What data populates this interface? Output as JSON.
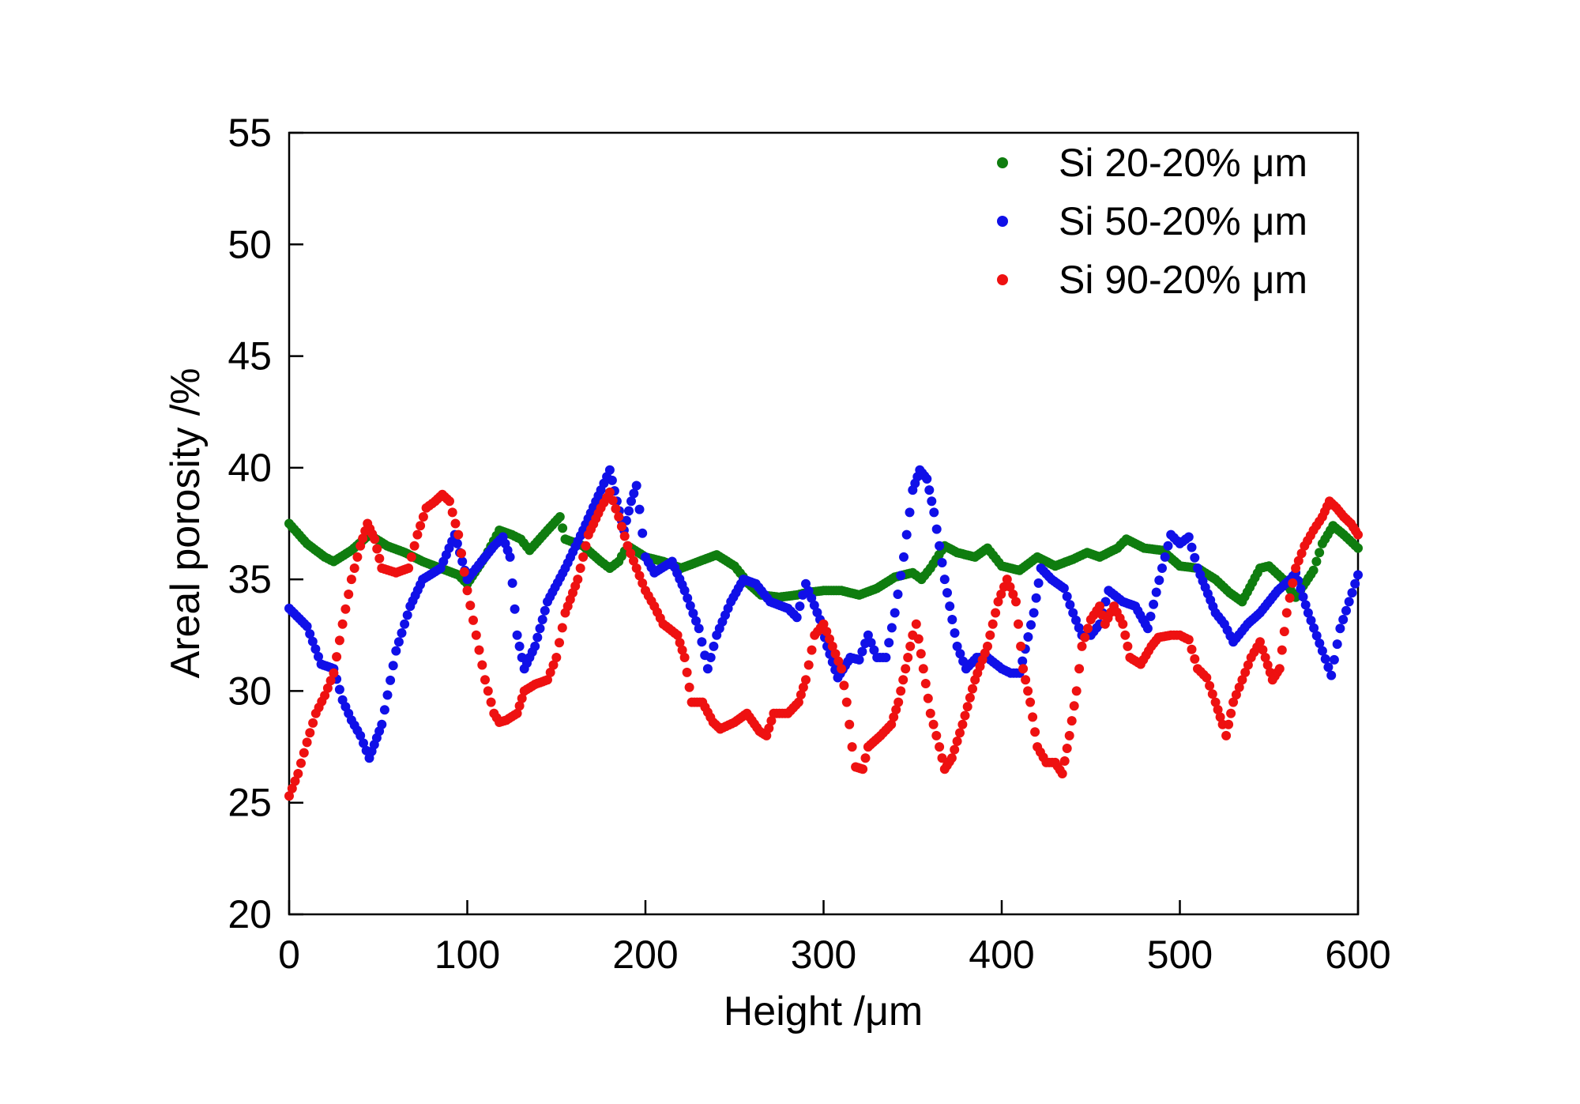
{
  "chart_data": {
    "type": "scatter",
    "xlabel": "Height /μm",
    "ylabel": "Areal porosity /%",
    "xlim": [
      0,
      600
    ],
    "ylim": [
      20,
      55
    ],
    "xticks": [
      0,
      100,
      200,
      300,
      400,
      500,
      600
    ],
    "yticks": [
      20,
      25,
      30,
      35,
      40,
      45,
      50,
      55
    ],
    "grid": false,
    "legend_position": "top-right",
    "series": [
      {
        "name": "Si 20-20% μm",
        "color": "#0f7d0f",
        "points": [
          [
            0,
            37.5
          ],
          [
            10,
            36.6
          ],
          [
            20,
            36.0
          ],
          [
            25,
            35.8
          ],
          [
            35,
            36.3
          ],
          [
            45,
            37.0
          ],
          [
            55,
            36.5
          ],
          [
            65,
            36.2
          ],
          [
            75,
            35.8
          ],
          [
            85,
            35.5
          ],
          [
            95,
            35.2
          ],
          [
            100,
            34.8
          ],
          [
            110,
            36.0
          ],
          [
            118,
            37.2
          ],
          [
            125,
            37.0
          ],
          [
            130,
            36.8
          ],
          [
            135,
            36.3
          ],
          [
            145,
            37.2
          ],
          [
            152,
            37.8
          ],
          [
            155,
            36.8
          ],
          [
            165,
            36.5
          ],
          [
            175,
            35.8
          ],
          [
            180,
            35.5
          ],
          [
            185,
            35.8
          ],
          [
            190,
            36.5
          ],
          [
            200,
            36.0
          ],
          [
            210,
            35.8
          ],
          [
            220,
            35.5
          ],
          [
            230,
            35.8
          ],
          [
            240,
            36.1
          ],
          [
            250,
            35.6
          ],
          [
            258,
            34.8
          ],
          [
            265,
            34.3
          ],
          [
            275,
            34.2
          ],
          [
            285,
            34.3
          ],
          [
            290,
            34.4
          ],
          [
            300,
            34.5
          ],
          [
            310,
            34.5
          ],
          [
            320,
            34.3
          ],
          [
            330,
            34.6
          ],
          [
            340,
            35.1
          ],
          [
            350,
            35.3
          ],
          [
            355,
            35.0
          ],
          [
            360,
            35.5
          ],
          [
            368,
            36.5
          ],
          [
            375,
            36.2
          ],
          [
            385,
            36.0
          ],
          [
            392,
            36.4
          ],
          [
            400,
            35.6
          ],
          [
            410,
            35.4
          ],
          [
            420,
            36.0
          ],
          [
            430,
            35.6
          ],
          [
            440,
            35.9
          ],
          [
            448,
            36.2
          ],
          [
            455,
            36.0
          ],
          [
            465,
            36.4
          ],
          [
            470,
            36.8
          ],
          [
            480,
            36.4
          ],
          [
            490,
            36.3
          ],
          [
            500,
            35.6
          ],
          [
            510,
            35.5
          ],
          [
            520,
            35.0
          ],
          [
            528,
            34.4
          ],
          [
            535,
            34.0
          ],
          [
            545,
            35.5
          ],
          [
            550,
            35.6
          ],
          [
            558,
            35.0
          ],
          [
            565,
            34.2
          ],
          [
            575,
            35.4
          ],
          [
            580,
            36.6
          ],
          [
            586,
            37.4
          ],
          [
            592,
            37.0
          ],
          [
            600,
            36.4
          ]
        ]
      },
      {
        "name": "Si 50-20% μm",
        "color": "#1010e8",
        "points": [
          [
            0,
            33.7
          ],
          [
            10,
            32.9
          ],
          [
            18,
            31.2
          ],
          [
            25,
            31.0
          ],
          [
            30,
            29.6
          ],
          [
            35,
            28.7
          ],
          [
            40,
            28.0
          ],
          [
            45,
            27.0
          ],
          [
            52,
            28.5
          ],
          [
            60,
            31.8
          ],
          [
            68,
            33.8
          ],
          [
            75,
            35.0
          ],
          [
            85,
            35.5
          ],
          [
            93,
            37.0
          ],
          [
            100,
            35.0
          ],
          [
            108,
            35.8
          ],
          [
            115,
            36.5
          ],
          [
            120,
            36.9
          ],
          [
            124,
            36.0
          ],
          [
            128,
            32.5
          ],
          [
            132,
            31.0
          ],
          [
            138,
            32.0
          ],
          [
            145,
            34.0
          ],
          [
            155,
            35.5
          ],
          [
            165,
            37.2
          ],
          [
            175,
            39.0
          ],
          [
            180,
            39.9
          ],
          [
            184,
            38.5
          ],
          [
            188,
            37.2
          ],
          [
            192,
            38.5
          ],
          [
            195,
            39.2
          ],
          [
            200,
            36.0
          ],
          [
            205,
            35.3
          ],
          [
            215,
            35.8
          ],
          [
            222,
            34.5
          ],
          [
            230,
            32.8
          ],
          [
            235,
            31.0
          ],
          [
            240,
            32.5
          ],
          [
            248,
            34.0
          ],
          [
            255,
            35.0
          ],
          [
            262,
            34.8
          ],
          [
            270,
            34.0
          ],
          [
            280,
            33.7
          ],
          [
            285,
            33.3
          ],
          [
            290,
            34.8
          ],
          [
            298,
            33.2
          ],
          [
            302,
            32.0
          ],
          [
            308,
            30.6
          ],
          [
            315,
            31.5
          ],
          [
            320,
            31.4
          ],
          [
            325,
            32.5
          ],
          [
            330,
            31.5
          ],
          [
            335,
            31.5
          ],
          [
            340,
            33.5
          ],
          [
            345,
            36.0
          ],
          [
            350,
            39.0
          ],
          [
            354,
            39.9
          ],
          [
            358,
            39.5
          ],
          [
            362,
            38.0
          ],
          [
            368,
            35.0
          ],
          [
            375,
            32.0
          ],
          [
            380,
            31.0
          ],
          [
            386,
            31.5
          ],
          [
            392,
            31.5
          ],
          [
            400,
            31.0
          ],
          [
            405,
            30.8
          ],
          [
            410,
            30.8
          ],
          [
            418,
            33.5
          ],
          [
            422,
            35.5
          ],
          [
            428,
            35.0
          ],
          [
            435,
            34.6
          ],
          [
            440,
            33.5
          ],
          [
            445,
            32.5
          ],
          [
            450,
            32.5
          ],
          [
            455,
            33.0
          ],
          [
            460,
            34.5
          ],
          [
            468,
            34.0
          ],
          [
            475,
            33.8
          ],
          [
            482,
            32.8
          ],
          [
            490,
            35.5
          ],
          [
            495,
            37.0
          ],
          [
            500,
            36.6
          ],
          [
            505,
            36.9
          ],
          [
            510,
            35.5
          ],
          [
            520,
            33.5
          ],
          [
            525,
            33.0
          ],
          [
            530,
            32.2
          ],
          [
            538,
            33.0
          ],
          [
            545,
            33.5
          ],
          [
            555,
            34.5
          ],
          [
            562,
            35.0
          ],
          [
            565,
            35.3
          ],
          [
            572,
            33.5
          ],
          [
            580,
            31.8
          ],
          [
            585,
            30.7
          ],
          [
            590,
            32.8
          ],
          [
            595,
            34.0
          ],
          [
            600,
            35.2
          ]
        ]
      },
      {
        "name": "Si 90-20% μm",
        "color": "#ee1111",
        "points": [
          [
            0,
            25.3
          ],
          [
            5,
            26.3
          ],
          [
            10,
            27.7
          ],
          [
            15,
            29.0
          ],
          [
            20,
            29.8
          ],
          [
            25,
            30.8
          ],
          [
            30,
            33.0
          ],
          [
            35,
            35.0
          ],
          [
            40,
            36.5
          ],
          [
            44,
            37.5
          ],
          [
            48,
            36.8
          ],
          [
            52,
            35.5
          ],
          [
            60,
            35.3
          ],
          [
            67,
            35.5
          ],
          [
            72,
            37.0
          ],
          [
            77,
            38.2
          ],
          [
            82,
            38.5
          ],
          [
            86,
            38.8
          ],
          [
            90,
            38.5
          ],
          [
            95,
            37.0
          ],
          [
            100,
            34.5
          ],
          [
            105,
            32.5
          ],
          [
            110,
            30.5
          ],
          [
            115,
            29.0
          ],
          [
            118,
            28.6
          ],
          [
            122,
            28.7
          ],
          [
            128,
            29.0
          ],
          [
            132,
            30.0
          ],
          [
            138,
            30.3
          ],
          [
            145,
            30.5
          ],
          [
            150,
            31.5
          ],
          [
            155,
            33.5
          ],
          [
            162,
            35.0
          ],
          [
            168,
            37.0
          ],
          [
            175,
            38.2
          ],
          [
            180,
            38.9
          ],
          [
            185,
            37.8
          ],
          [
            190,
            36.5
          ],
          [
            195,
            35.5
          ],
          [
            200,
            34.5
          ],
          [
            205,
            33.8
          ],
          [
            210,
            33.0
          ],
          [
            218,
            32.5
          ],
          [
            222,
            31.5
          ],
          [
            226,
            29.5
          ],
          [
            232,
            29.5
          ],
          [
            238,
            28.6
          ],
          [
            242,
            28.3
          ],
          [
            250,
            28.6
          ],
          [
            257,
            29.0
          ],
          [
            264,
            28.2
          ],
          [
            268,
            28.0
          ],
          [
            272,
            29.0
          ],
          [
            280,
            29.0
          ],
          [
            286,
            29.5
          ],
          [
            290,
            30.5
          ],
          [
            295,
            32.5
          ],
          [
            300,
            33.0
          ],
          [
            305,
            32.0
          ],
          [
            310,
            31.0
          ],
          [
            313,
            29.5
          ],
          [
            316,
            27.5
          ],
          [
            318,
            26.6
          ],
          [
            322,
            26.5
          ],
          [
            325,
            27.5
          ],
          [
            332,
            28.0
          ],
          [
            338,
            28.5
          ],
          [
            342,
            29.5
          ],
          [
            346,
            31.0
          ],
          [
            350,
            32.5
          ],
          [
            352,
            33.0
          ],
          [
            356,
            31.0
          ],
          [
            360,
            29.0
          ],
          [
            365,
            27.5
          ],
          [
            368,
            26.5
          ],
          [
            372,
            27.0
          ],
          [
            378,
            28.5
          ],
          [
            385,
            30.5
          ],
          [
            392,
            32.0
          ],
          [
            398,
            34.0
          ],
          [
            403,
            35.0
          ],
          [
            408,
            34.0
          ],
          [
            412,
            31.0
          ],
          [
            416,
            29.5
          ],
          [
            420,
            27.5
          ],
          [
            425,
            26.8
          ],
          [
            430,
            26.8
          ],
          [
            434,
            26.3
          ],
          [
            438,
            28.0
          ],
          [
            442,
            30.0
          ],
          [
            445,
            32.0
          ],
          [
            450,
            33.2
          ],
          [
            455,
            33.8
          ],
          [
            458,
            33.0
          ],
          [
            463,
            33.8
          ],
          [
            468,
            33.0
          ],
          [
            472,
            31.5
          ],
          [
            478,
            31.2
          ],
          [
            484,
            32.0
          ],
          [
            488,
            32.4
          ],
          [
            495,
            32.5
          ],
          [
            500,
            32.5
          ],
          [
            505,
            32.3
          ],
          [
            510,
            31.0
          ],
          [
            515,
            30.6
          ],
          [
            520,
            29.5
          ],
          [
            524,
            28.5
          ],
          [
            526,
            28.0
          ],
          [
            530,
            29.5
          ],
          [
            535,
            30.5
          ],
          [
            540,
            31.5
          ],
          [
            545,
            32.2
          ],
          [
            548,
            31.5
          ],
          [
            552,
            30.5
          ],
          [
            556,
            31.0
          ],
          [
            560,
            33.5
          ],
          [
            565,
            35.5
          ],
          [
            570,
            36.5
          ],
          [
            575,
            37.2
          ],
          [
            580,
            37.8
          ],
          [
            584,
            38.5
          ],
          [
            588,
            38.2
          ],
          [
            592,
            37.8
          ],
          [
            596,
            37.5
          ],
          [
            600,
            37.0
          ]
        ]
      }
    ]
  }
}
